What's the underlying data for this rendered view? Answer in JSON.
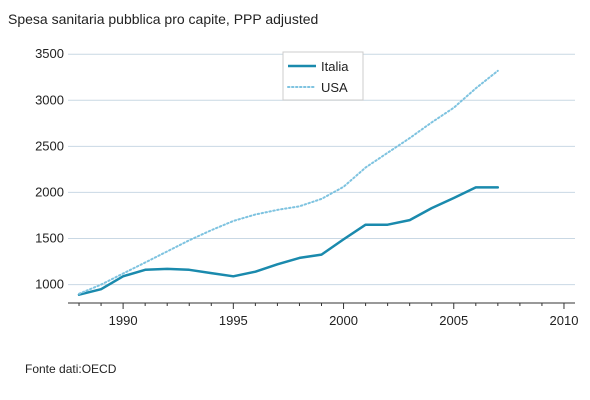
{
  "chart_data": {
    "type": "line",
    "title": "Spesa sanitaria pubblica pro capite, PPP adjusted",
    "xlabel": "",
    "ylabel": "",
    "xlim": [
      1987.5,
      2010.5
    ],
    "ylim": [
      800,
      3600
    ],
    "x_ticks": [
      1990,
      1995,
      2000,
      2005,
      2010
    ],
    "y_ticks": [
      1000,
      1500,
      2000,
      2500,
      3000,
      3500
    ],
    "grid": "horizontal",
    "legend_position": "top-center",
    "series": [
      {
        "name": "Italia",
        "color": "#1a8aad",
        "style": "solid",
        "x": [
          1988,
          1989,
          1990,
          1991,
          1992,
          1993,
          1994,
          1995,
          1996,
          1997,
          1998,
          1999,
          2000,
          2001,
          2002,
          2003,
          2004,
          2005,
          2006,
          2007
        ],
        "y": [
          890,
          950,
          1090,
          1160,
          1170,
          1160,
          1125,
          1090,
          1140,
          1220,
          1290,
          1325,
          1490,
          1650,
          1650,
          1700,
          1830,
          1940,
          2055,
          2055
        ]
      },
      {
        "name": "USA",
        "color": "#7ec3e0",
        "style": "dotted",
        "x": [
          1988,
          1989,
          1990,
          1991,
          1992,
          1993,
          1994,
          1995,
          1996,
          1997,
          1998,
          1999,
          2000,
          2001,
          2002,
          2003,
          2004,
          2005,
          2006,
          2007
        ],
        "y": [
          900,
          1000,
          1120,
          1240,
          1360,
          1480,
          1590,
          1690,
          1760,
          1810,
          1850,
          1930,
          2060,
          2270,
          2430,
          2590,
          2760,
          2920,
          3130,
          3320
        ]
      }
    ]
  },
  "footer": {
    "source": "Fonte dati:OECD"
  },
  "colors": {
    "grid": "#c9d8e4",
    "axis": "#333333"
  }
}
